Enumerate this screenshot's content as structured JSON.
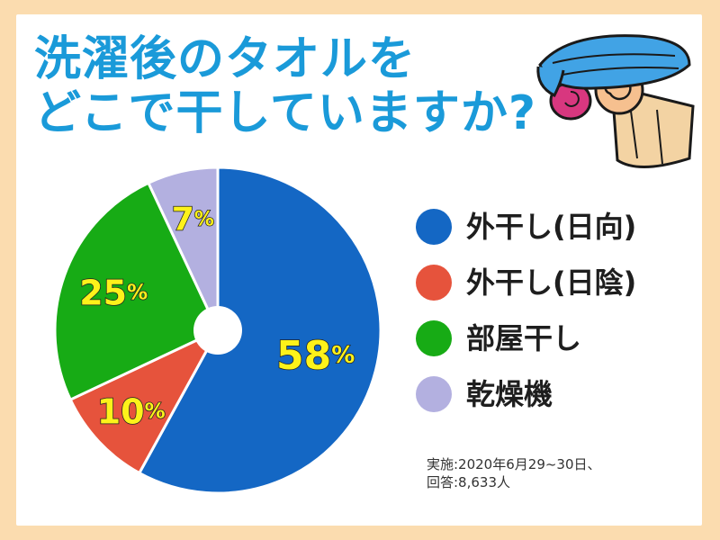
{
  "title": {
    "line1": "洗濯後のタオルを",
    "line2": "どこで干していますか?"
  },
  "chart_data": {
    "type": "pie",
    "categories": [
      "外干し(日向)",
      "外干し(日陰)",
      "部屋干し",
      "乾燥機"
    ],
    "values": [
      58,
      10,
      25,
      7
    ],
    "value_labels": [
      "58",
      "10",
      "25",
      "7"
    ],
    "unit": "%",
    "colors": [
      "#1467c4",
      "#e6533c",
      "#17ab15",
      "#b3b0e0"
    ],
    "label_color": "#fdf21a",
    "start": "12 o'clock, clockwise",
    "donut_hole": true,
    "legend_position": "right"
  },
  "legend": {
    "items": [
      {
        "label": "外干し(日向)",
        "color": "#1467c4"
      },
      {
        "label": "外干し(日陰)",
        "color": "#e6533c"
      },
      {
        "label": "部屋干し",
        "color": "#17ab15"
      },
      {
        "label": "乾燥機",
        "color": "#b3b0e0"
      }
    ]
  },
  "note": {
    "line1": "実施:2020年6月29~30日、",
    "line2": "回答:8,633人"
  },
  "illustration": {
    "icon": "towel-stack-icon"
  }
}
